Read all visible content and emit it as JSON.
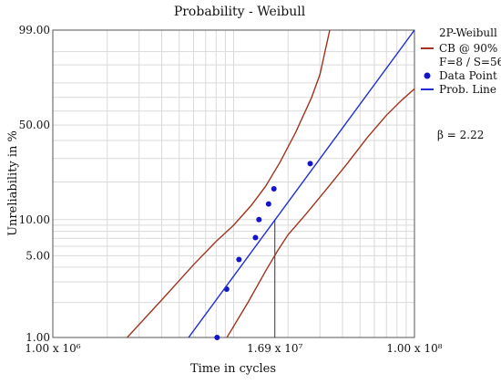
{
  "chart_data": {
    "type": "scatter",
    "title": "Probability - Weibull",
    "xlabel": "Time in cycles",
    "ylabel": "Unreliability in %",
    "x_scale": "log",
    "y_scale": "weibull",
    "xlim": [
      1000000,
      100000000
    ],
    "ylim": [
      1.0,
      99.0
    ],
    "grid": true,
    "x_tick_labels": [
      {
        "value": 1000000,
        "label": "1.00 x 10⁶"
      },
      {
        "value": 16900000,
        "label": "1.69 x 10⁷"
      },
      {
        "value": 100000000,
        "label": "1.00 x 10⁸"
      }
    ],
    "y_tick_labels": [
      {
        "value": 99.0,
        "label": "99.00"
      },
      {
        "value": 50.0,
        "label": "50.00"
      },
      {
        "value": 10.0,
        "label": "10.00"
      },
      {
        "value": 5.0,
        "label": "5.00"
      },
      {
        "value": 1.0,
        "label": "1.00"
      }
    ],
    "legend": {
      "placement": "right",
      "header": "2P-Weibull",
      "entries": [
        {
          "label": "CB @ 90%",
          "kind": "line",
          "color": "#a0341f"
        },
        {
          "label": "F=8 / S=56",
          "kind": "text"
        },
        {
          "label": "Data Point",
          "kind": "marker",
          "color": "#1414c8"
        },
        {
          "label": "Prob. Line",
          "kind": "line",
          "color": "#1f2fd1"
        }
      ]
    },
    "annotation": "β = 2.22",
    "reference_line": {
      "x": 16900000,
      "y": 10.0
    },
    "series": [
      {
        "name": "Data Point",
        "kind": "points",
        "color": "#1414c8",
        "points": [
          [
            8100000,
            1.0
          ],
          [
            9150000,
            2.6
          ],
          [
            10700000,
            4.65
          ],
          [
            13200000,
            7.1
          ],
          [
            13800000,
            10.0
          ],
          [
            15600000,
            13.4
          ],
          [
            16700000,
            17.7
          ],
          [
            26500000,
            27.5
          ]
        ]
      },
      {
        "name": "Prob. Line",
        "kind": "line",
        "color": "#1f2fd1",
        "points": [
          [
            5500000,
            0.95
          ],
          [
            100000000,
            99.0
          ]
        ]
      },
      {
        "name": "CB @ 90%",
        "kind": "curve",
        "color": "#a0341f",
        "points": [
          [
            2500000,
            0.95
          ],
          [
            4000000,
            2.1
          ],
          [
            6000000,
            4.2
          ],
          [
            8000000,
            6.6
          ],
          [
            10000000,
            9.0
          ],
          [
            12500000,
            13.0
          ],
          [
            15000000,
            18.5
          ],
          [
            18000000,
            28.0
          ],
          [
            22000000,
            45.0
          ],
          [
            27000000,
            70.0
          ],
          [
            30000000,
            85.0
          ],
          [
            34000000,
            99.0
          ]
        ]
      },
      {
        "name": "CB @ 90%",
        "kind": "curve",
        "color": "#a0341f",
        "points": [
          [
            9000000,
            0.95
          ],
          [
            12000000,
            2.0
          ],
          [
            15000000,
            3.7
          ],
          [
            17500000,
            5.5
          ],
          [
            20000000,
            7.5
          ],
          [
            25000000,
            11.0
          ],
          [
            32000000,
            17.0
          ],
          [
            42000000,
            27.0
          ],
          [
            55000000,
            42.0
          ],
          [
            70000000,
            57.0
          ],
          [
            85000000,
            68.0
          ],
          [
            100000000,
            76.0
          ]
        ]
      }
    ]
  }
}
